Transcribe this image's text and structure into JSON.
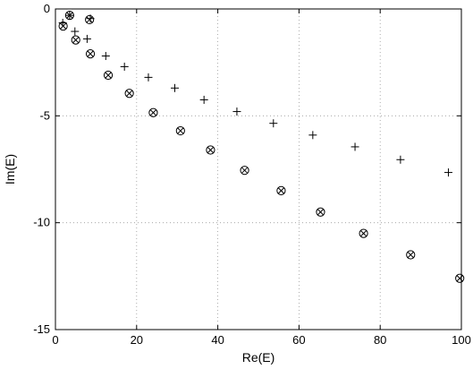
{
  "chart_data": {
    "type": "scatter",
    "xlabel": "Re(E)",
    "ylabel": "Im(E)",
    "xlim": [
      0,
      100
    ],
    "ylim": [
      -15,
      0
    ],
    "xticks": [
      0,
      20,
      40,
      60,
      80,
      100
    ],
    "yticks": [
      0,
      -5,
      -10,
      -15
    ],
    "xtick_labels": [
      "0",
      "20",
      "40",
      "60",
      "80",
      "100"
    ],
    "ytick_labels": [
      "0",
      "-5",
      "-10",
      "-15"
    ],
    "grid": true,
    "series": [
      {
        "marker": "circle-x",
        "x": [
          1.9,
          3.5,
          5.0,
          8.4,
          8.6,
          13.0,
          18.2,
          24.1,
          30.8,
          38.2,
          46.6,
          55.6,
          65.3,
          75.9,
          87.5,
          99.6
        ],
        "y": [
          -0.8,
          -0.3,
          -1.45,
          -0.5,
          -2.1,
          -3.1,
          -3.95,
          -4.85,
          -5.7,
          -6.6,
          -7.55,
          -8.5,
          -9.5,
          -10.5,
          -11.5,
          -12.6
        ]
      },
      {
        "marker": "plus",
        "x": [
          1.8,
          3.5,
          4.8,
          7.8,
          8.6,
          12.4,
          17.0,
          22.9,
          29.4,
          36.6,
          44.7,
          53.7,
          63.4,
          73.8,
          85.0,
          96.8
        ],
        "y": [
          -0.65,
          -0.3,
          -1.05,
          -1.4,
          -0.45,
          -2.2,
          -2.7,
          -3.2,
          -3.7,
          -4.25,
          -4.8,
          -5.35,
          -5.9,
          -6.45,
          -7.05,
          -7.65
        ]
      }
    ]
  }
}
